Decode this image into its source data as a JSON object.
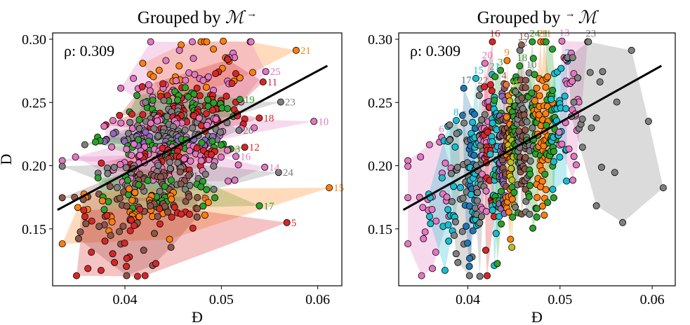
{
  "chart_data": [
    {
      "type": "scatter",
      "title": "Grouped by ℳ→",
      "title_parts": {
        "prefix": "Grouped by ",
        "symbol": "ℳ",
        "arrow": "→",
        "arrow_position": "after"
      },
      "xlabel": "Đ",
      "ylabel": "D",
      "xlim": [
        0.0325,
        0.0625
      ],
      "ylim": [
        0.105,
        0.305
      ],
      "xticks": [
        0.04,
        0.05,
        0.06
      ],
      "xtick_labels": [
        "0.04",
        "0.05",
        "0.06"
      ],
      "yticks": [
        0.15,
        0.2,
        0.25,
        0.3
      ],
      "ytick_labels": [
        "0.15",
        "0.20",
        "0.25",
        "0.30"
      ],
      "annotation": "ρ: 0.309",
      "grouping": "by_y",
      "group_labels": [
        "21",
        "25",
        "11",
        "19",
        "23",
        "18",
        "10",
        "20",
        "6",
        "3",
        "16",
        "12",
        "14",
        "24",
        "1",
        "17",
        "15",
        "8",
        "5"
      ],
      "regression_line": {
        "x": [
          0.033,
          0.061
        ],
        "y": [
          0.165,
          0.279
        ]
      },
      "grid": false
    },
    {
      "type": "scatter",
      "title": "Grouped by →ℳ",
      "title_parts": {
        "prefix": "Grouped by ",
        "symbol": "ℳ",
        "arrow": "→",
        "arrow_position": "before"
      },
      "xlabel": "Đ",
      "ylabel": "",
      "xlim": [
        0.0325,
        0.0625
      ],
      "ylim": [
        0.105,
        0.305
      ],
      "xticks": [
        0.04,
        0.05,
        0.06
      ],
      "xtick_labels": [
        "0.04",
        "0.05",
        "0.06"
      ],
      "yticks": [
        0.15,
        0.2,
        0.25,
        0.3
      ],
      "ytick_labels": [
        "0.15",
        "0.20",
        "0.25",
        "0.30"
      ],
      "annotation": "ρ: 0.309",
      "grouping": "by_x",
      "group_labels": [
        "6",
        "8",
        "5",
        "17",
        "15",
        "22",
        "20",
        "16",
        "21",
        "3",
        "14",
        "4",
        "9",
        "25",
        "18",
        "12",
        "19",
        "10",
        "24",
        "2",
        "11",
        "1",
        "7",
        "13",
        "23"
      ],
      "regression_line": {
        "x": [
          0.033,
          0.061
        ],
        "y": [
          0.165,
          0.279
        ]
      },
      "grid": false
    }
  ],
  "palette": [
    "#1f77b4",
    "#ff7f0e",
    "#2ca02c",
    "#d62728",
    "#9467bd",
    "#8c564b",
    "#e377c2",
    "#7f7f7f",
    "#bcbd22",
    "#17becf"
  ]
}
